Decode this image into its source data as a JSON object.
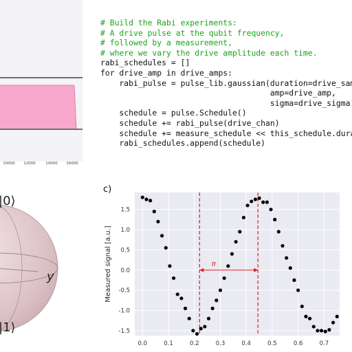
{
  "pulse_plot": {
    "x_ticks": [
      "10000",
      "12000",
      "14000",
      "16000"
    ]
  },
  "code": {
    "lines": [
      "# Build the Rabi experiments:",
      "# A drive pulse at the qubit frequency,",
      "# followed by a measurement,",
      "# where we vary the drive amplitude each time.",
      "rabi_schedules = []",
      "for drive_amp in drive_amps:",
      "    rabi_pulse = pulse_lib.gaussian(duration=drive_sam",
      "                                    amp=drive_amp,",
      "                                    sigma=drive_sigma)",
      "    schedule = pulse.Schedule()",
      "    schedule += rabi_pulse(drive_chan)",
      "    schedule += measure_schedule << this_schedule.dura",
      "    rabi_schedules.append(schedule)"
    ],
    "comment_color": "#1aa51a"
  },
  "bloch": {
    "label_top": "|0⟩",
    "label_bottom": "|1⟩",
    "label_y": "y"
  },
  "chart_data": {
    "type": "scatter",
    "panel_label": "c)",
    "ylabel": "Measured signal [a.u.]",
    "xlabel": "",
    "xlim": [
      -0.03,
      0.76
    ],
    "ylim": [
      -1.62,
      1.92
    ],
    "x_ticks": [
      "0.0",
      "0.1",
      "0.2",
      "0.3",
      "0.4",
      "0.5",
      "0.6",
      "0.7"
    ],
    "y_ticks": [
      "1.5",
      "1.0",
      "0.5",
      "0.0",
      "-0.5",
      "-1.0",
      "-1.5"
    ],
    "vlines": [
      0.22,
      0.445
    ],
    "annotation": {
      "text": "π",
      "from": 0.22,
      "to": 0.445,
      "y": 0.0
    },
    "points": [
      {
        "x": 0.0,
        "y": 1.8
      },
      {
        "x": 0.015,
        "y": 1.75
      },
      {
        "x": 0.03,
        "y": 1.72
      },
      {
        "x": 0.045,
        "y": 1.45
      },
      {
        "x": 0.06,
        "y": 1.2
      },
      {
        "x": 0.075,
        "y": 0.85
      },
      {
        "x": 0.09,
        "y": 0.55
      },
      {
        "x": 0.105,
        "y": 0.1
      },
      {
        "x": 0.12,
        "y": -0.2
      },
      {
        "x": 0.135,
        "y": -0.6
      },
      {
        "x": 0.15,
        "y": -0.7
      },
      {
        "x": 0.165,
        "y": -0.95
      },
      {
        "x": 0.18,
        "y": -1.2
      },
      {
        "x": 0.195,
        "y": -1.5
      },
      {
        "x": 0.21,
        "y": -1.58
      },
      {
        "x": 0.225,
        "y": -1.45
      },
      {
        "x": 0.24,
        "y": -1.4
      },
      {
        "x": 0.255,
        "y": -1.2
      },
      {
        "x": 0.27,
        "y": -0.95
      },
      {
        "x": 0.285,
        "y": -0.75
      },
      {
        "x": 0.3,
        "y": -0.5
      },
      {
        "x": 0.315,
        "y": -0.2
      },
      {
        "x": 0.33,
        "y": 0.1
      },
      {
        "x": 0.345,
        "y": 0.4
      },
      {
        "x": 0.36,
        "y": 0.7
      },
      {
        "x": 0.375,
        "y": 0.95
      },
      {
        "x": 0.39,
        "y": 1.3
      },
      {
        "x": 0.405,
        "y": 1.6
      },
      {
        "x": 0.42,
        "y": 1.7
      },
      {
        "x": 0.435,
        "y": 1.75
      },
      {
        "x": 0.45,
        "y": 1.78
      },
      {
        "x": 0.465,
        "y": 1.68
      },
      {
        "x": 0.48,
        "y": 1.68
      },
      {
        "x": 0.495,
        "y": 1.5
      },
      {
        "x": 0.51,
        "y": 1.25
      },
      {
        "x": 0.525,
        "y": 0.95
      },
      {
        "x": 0.54,
        "y": 0.6
      },
      {
        "x": 0.555,
        "y": 0.3
      },
      {
        "x": 0.57,
        "y": 0.05
      },
      {
        "x": 0.585,
        "y": -0.25
      },
      {
        "x": 0.6,
        "y": -0.5
      },
      {
        "x": 0.615,
        "y": -0.9
      },
      {
        "x": 0.63,
        "y": -1.15
      },
      {
        "x": 0.645,
        "y": -1.2
      },
      {
        "x": 0.66,
        "y": -1.4
      },
      {
        "x": 0.675,
        "y": -1.5
      },
      {
        "x": 0.69,
        "y": -1.5
      },
      {
        "x": 0.705,
        "y": -1.52
      },
      {
        "x": 0.72,
        "y": -1.48
      },
      {
        "x": 0.735,
        "y": -1.3
      },
      {
        "x": 0.75,
        "y": -1.15
      }
    ],
    "colors": {
      "points": "#000000",
      "vlines": "#dd2020",
      "background": "#eaeaf2",
      "grid": "#ffffff"
    }
  }
}
